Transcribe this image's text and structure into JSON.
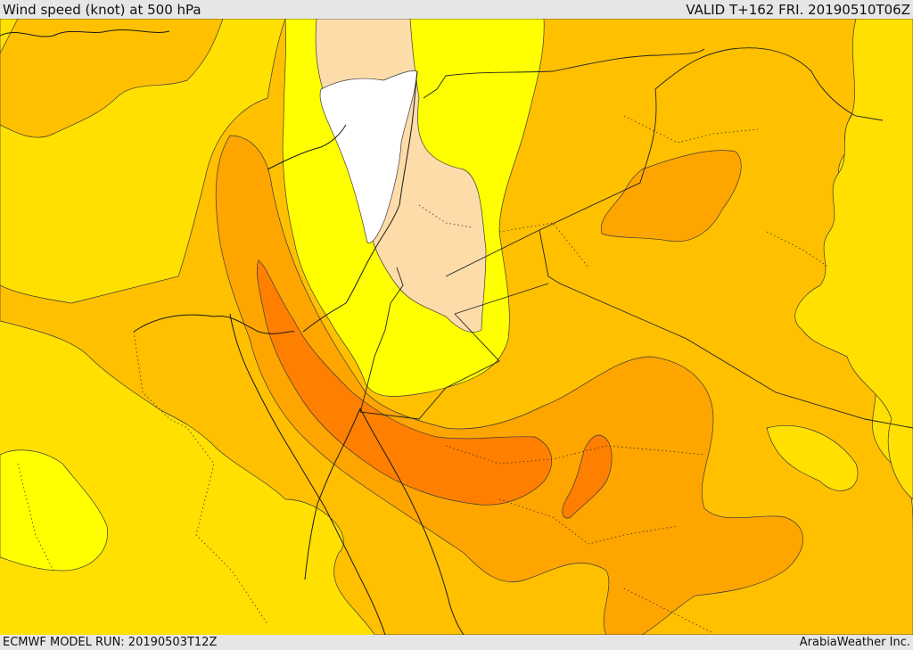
{
  "header": {
    "title": "Wind speed (knot) at 500 hPa",
    "valid": "VALID T+162 FRI. 20190510T06Z"
  },
  "footer": {
    "model_run": "ECMWF MODEL RUN: 20190503T12Z",
    "credit": "ArabiaWeather Inc."
  },
  "palette": {
    "calm": "#ffffff",
    "light": "#fddcaa",
    "yellow": "#ffff00",
    "gold": "#ffe000",
    "amber": "#ffc000",
    "orange": "#ffa500",
    "dark_orange": "#ff7f00",
    "boundary": "#222222"
  }
}
